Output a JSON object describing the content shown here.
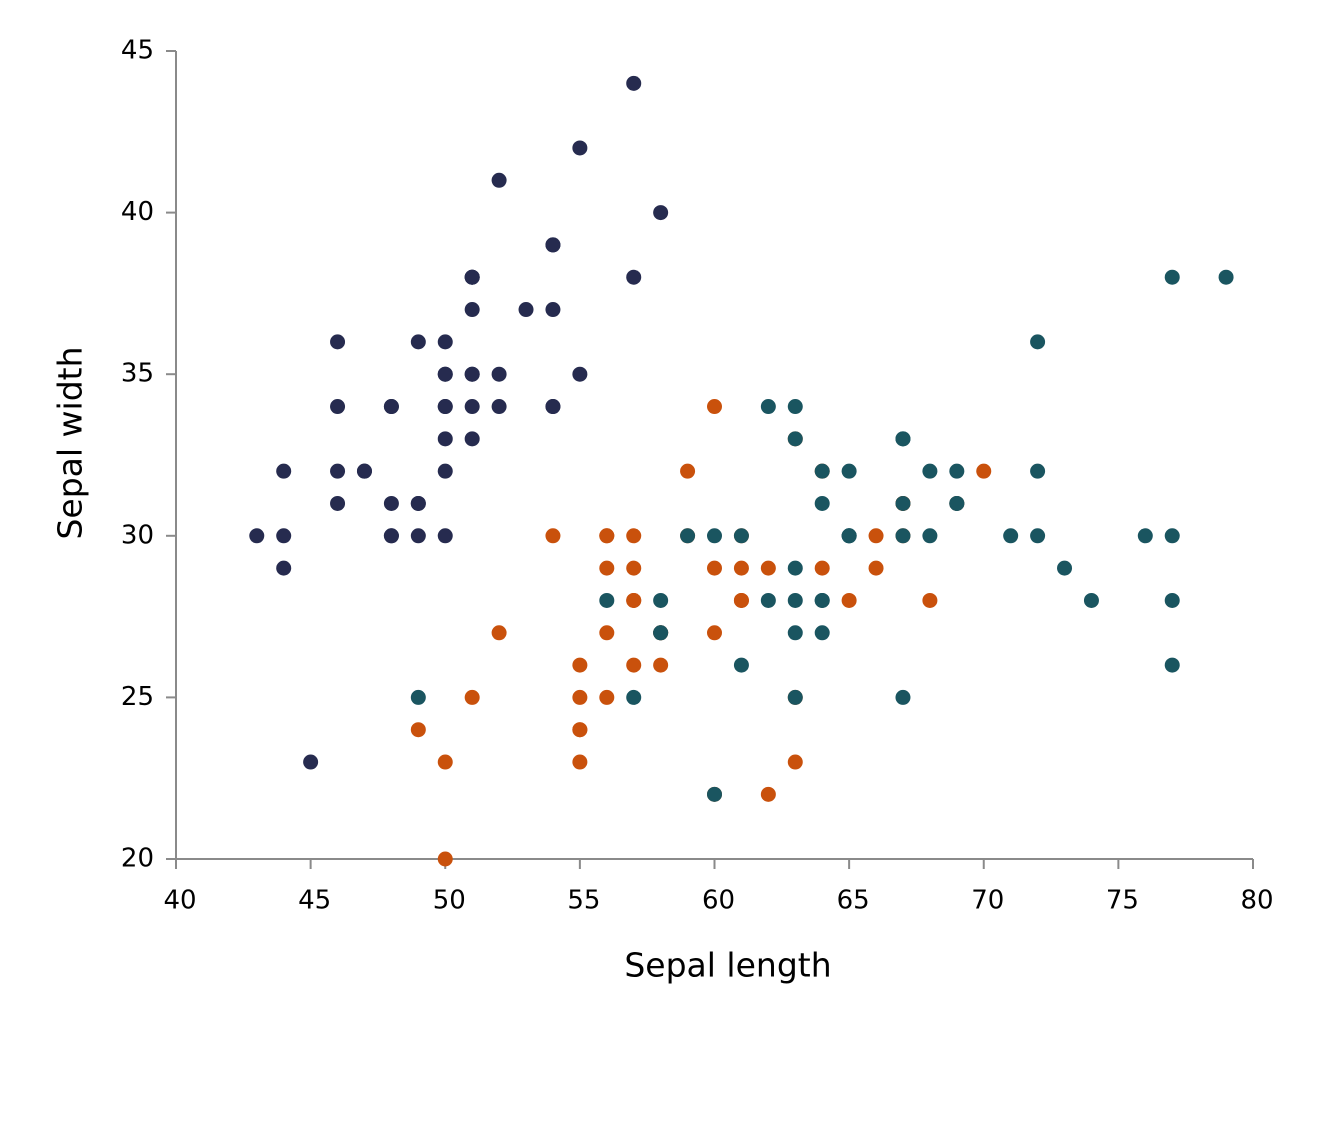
{
  "chart_data": {
    "type": "scatter",
    "xlabel": "Sepal length",
    "ylabel": "Sepal width",
    "xlim": [
      40,
      80
    ],
    "xticks": [
      40,
      45,
      50,
      55,
      60,
      65,
      70,
      75,
      80
    ],
    "ylim": [
      20,
      45
    ],
    "yticks": [
      20,
      25,
      30,
      35,
      40,
      45
    ],
    "series": [
      {
        "color": "#262b4f",
        "x": [
          51,
          49,
          47,
          46,
          50,
          54,
          46,
          50,
          44,
          49,
          54,
          48,
          48,
          43,
          58,
          57,
          54,
          51,
          57,
          51,
          54,
          51,
          46,
          51,
          48,
          50,
          50,
          52,
          52,
          47,
          48,
          54,
          52,
          55,
          49,
          50,
          55,
          49,
          44,
          51,
          50,
          45,
          44,
          50,
          51,
          48,
          51,
          46,
          53,
          50
        ],
        "values": [
          35,
          30,
          32,
          31,
          36,
          39,
          34,
          34,
          29,
          31,
          37,
          34,
          30,
          30,
          40,
          44,
          39,
          35,
          38,
          38,
          34,
          37,
          36,
          33,
          34,
          30,
          34,
          35,
          34,
          32,
          31,
          34,
          41,
          42,
          31,
          32,
          35,
          36,
          30,
          34,
          35,
          23,
          32,
          35,
          38,
          30,
          38,
          32,
          37,
          33
        ]
      },
      {
        "color": "#c9510c",
        "x": [
          70,
          64,
          69,
          55,
          65,
          57,
          63,
          49,
          66,
          52,
          50,
          59,
          60,
          61,
          56,
          67,
          56,
          58,
          62,
          56,
          59,
          61,
          63,
          61,
          64,
          66,
          68,
          67,
          60,
          57,
          55,
          55,
          58,
          60,
          54,
          60,
          67,
          63,
          56,
          55,
          55,
          61,
          58,
          50,
          56,
          57,
          57,
          62,
          51,
          57
        ],
        "values": [
          32,
          32,
          31,
          23,
          28,
          28,
          33,
          24,
          29,
          27,
          20,
          30,
          22,
          29,
          29,
          31,
          30,
          27,
          22,
          25,
          32,
          28,
          25,
          28,
          29,
          30,
          28,
          30,
          29,
          26,
          24,
          24,
          27,
          27,
          30,
          34,
          31,
          23,
          30,
          25,
          26,
          30,
          26,
          23,
          27,
          30,
          29,
          29,
          25,
          28
        ]
      },
      {
        "color": "#1a5560",
        "x": [
          63,
          58,
          71,
          63,
          65,
          76,
          49,
          73,
          67,
          72,
          65,
          64,
          68,
          57,
          58,
          64,
          65,
          77,
          77,
          60,
          69,
          56,
          77,
          63,
          67,
          72,
          62,
          61,
          64,
          72,
          74,
          79,
          64,
          63,
          61,
          77,
          63,
          64,
          60,
          69,
          67,
          69,
          58,
          68,
          67,
          67,
          63,
          65,
          62,
          59
        ],
        "values": [
          33,
          27,
          30,
          29,
          30,
          30,
          25,
          29,
          25,
          36,
          32,
          27,
          30,
          25,
          28,
          32,
          30,
          38,
          26,
          22,
          32,
          28,
          28,
          27,
          33,
          32,
          28,
          30,
          28,
          30,
          28,
          38,
          28,
          28,
          26,
          30,
          34,
          31,
          30,
          31,
          31,
          31,
          27,
          32,
          33,
          30,
          25,
          30,
          34,
          30
        ]
      }
    ]
  }
}
